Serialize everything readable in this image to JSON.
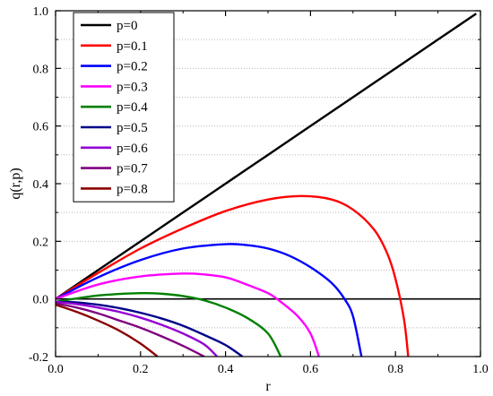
{
  "chart_data": {
    "type": "line",
    "title": "",
    "xlabel": "r",
    "ylabel": "q(r,p)",
    "xlim": [
      0,
      1.0
    ],
    "ylim": [
      -0.2,
      1.0
    ],
    "x_ticks": [
      "0.0",
      "0.2",
      "0.4",
      "0.6",
      "0.8",
      "1.0"
    ],
    "y_ticks": [
      "-0.2",
      "0.0",
      "0.2",
      "0.4",
      "0.6",
      "0.8",
      "1.0"
    ],
    "grid": "horizontal dotted",
    "legend_position": "top-left",
    "reference_line_y": 0.0,
    "series": [
      {
        "name": "p=0",
        "color": "#000000",
        "points": [
          [
            0,
            0
          ],
          [
            0.1,
            0.1
          ],
          [
            0.2,
            0.2
          ],
          [
            0.3,
            0.3
          ],
          [
            0.4,
            0.4
          ],
          [
            0.5,
            0.5
          ],
          [
            0.6,
            0.6
          ],
          [
            0.7,
            0.7
          ],
          [
            0.8,
            0.8
          ],
          [
            0.9,
            0.9
          ],
          [
            0.99,
            0.99
          ]
        ]
      },
      {
        "name": "p=0.1",
        "color": "#ff0000",
        "points": [
          [
            0,
            0
          ],
          [
            0.1,
            0.09
          ],
          [
            0.2,
            0.175
          ],
          [
            0.3,
            0.245
          ],
          [
            0.4,
            0.305
          ],
          [
            0.5,
            0.345
          ],
          [
            0.58,
            0.357
          ],
          [
            0.65,
            0.345
          ],
          [
            0.7,
            0.31
          ],
          [
            0.75,
            0.24
          ],
          [
            0.78,
            0.16
          ],
          [
            0.8,
            0.07
          ],
          [
            0.82,
            -0.07
          ],
          [
            0.83,
            -0.2
          ]
        ]
      },
      {
        "name": "p=0.2",
        "color": "#0000ff",
        "points": [
          [
            0,
            0
          ],
          [
            0.1,
            0.075
          ],
          [
            0.2,
            0.135
          ],
          [
            0.3,
            0.175
          ],
          [
            0.4,
            0.19
          ],
          [
            0.45,
            0.187
          ],
          [
            0.5,
            0.175
          ],
          [
            0.55,
            0.15
          ],
          [
            0.6,
            0.11
          ],
          [
            0.65,
            0.055
          ],
          [
            0.68,
            0.0
          ],
          [
            0.7,
            -0.06
          ],
          [
            0.72,
            -0.2
          ]
        ]
      },
      {
        "name": "p=0.3",
        "color": "#ff00ff",
        "points": [
          [
            0,
            0
          ],
          [
            0.1,
            0.05
          ],
          [
            0.2,
            0.078
          ],
          [
            0.3,
            0.088
          ],
          [
            0.35,
            0.085
          ],
          [
            0.4,
            0.075
          ],
          [
            0.45,
            0.05
          ],
          [
            0.5,
            0.02
          ],
          [
            0.53,
            -0.01
          ],
          [
            0.57,
            -0.06
          ],
          [
            0.6,
            -0.12
          ],
          [
            0.62,
            -0.2
          ]
        ]
      },
      {
        "name": "p=0.4",
        "color": "#008000",
        "points": [
          [
            0,
            -0.01
          ],
          [
            0.1,
            0.012
          ],
          [
            0.2,
            0.02
          ],
          [
            0.25,
            0.018
          ],
          [
            0.3,
            0.01
          ],
          [
            0.35,
            -0.005
          ],
          [
            0.4,
            -0.03
          ],
          [
            0.45,
            -0.065
          ],
          [
            0.5,
            -0.12
          ],
          [
            0.53,
            -0.2
          ]
        ]
      },
      {
        "name": "p=0.5",
        "color": "#00008b",
        "points": [
          [
            0,
            -0.01
          ],
          [
            0.05,
            -0.012
          ],
          [
            0.1,
            -0.02
          ],
          [
            0.15,
            -0.032
          ],
          [
            0.2,
            -0.048
          ],
          [
            0.25,
            -0.068
          ],
          [
            0.3,
            -0.093
          ],
          [
            0.35,
            -0.125
          ],
          [
            0.4,
            -0.16
          ],
          [
            0.44,
            -0.2
          ]
        ]
      },
      {
        "name": "p=0.6",
        "color": "#9400d3",
        "points": [
          [
            0,
            -0.01
          ],
          [
            0.05,
            -0.018
          ],
          [
            0.1,
            -0.03
          ],
          [
            0.15,
            -0.045
          ],
          [
            0.2,
            -0.065
          ],
          [
            0.25,
            -0.09
          ],
          [
            0.3,
            -0.12
          ],
          [
            0.35,
            -0.158
          ],
          [
            0.38,
            -0.2
          ]
        ]
      },
      {
        "name": "p=0.7",
        "color": "#800080",
        "points": [
          [
            0,
            -0.015
          ],
          [
            0.05,
            -0.03
          ],
          [
            0.1,
            -0.05
          ],
          [
            0.15,
            -0.075
          ],
          [
            0.2,
            -0.1
          ],
          [
            0.25,
            -0.13
          ],
          [
            0.3,
            -0.163
          ],
          [
            0.35,
            -0.2
          ]
        ]
      },
      {
        "name": "p=0.8",
        "color": "#8b0000",
        "points": [
          [
            0,
            -0.02
          ],
          [
            0.05,
            -0.045
          ],
          [
            0.1,
            -0.075
          ],
          [
            0.15,
            -0.11
          ],
          [
            0.2,
            -0.155
          ],
          [
            0.24,
            -0.2
          ]
        ]
      }
    ]
  }
}
